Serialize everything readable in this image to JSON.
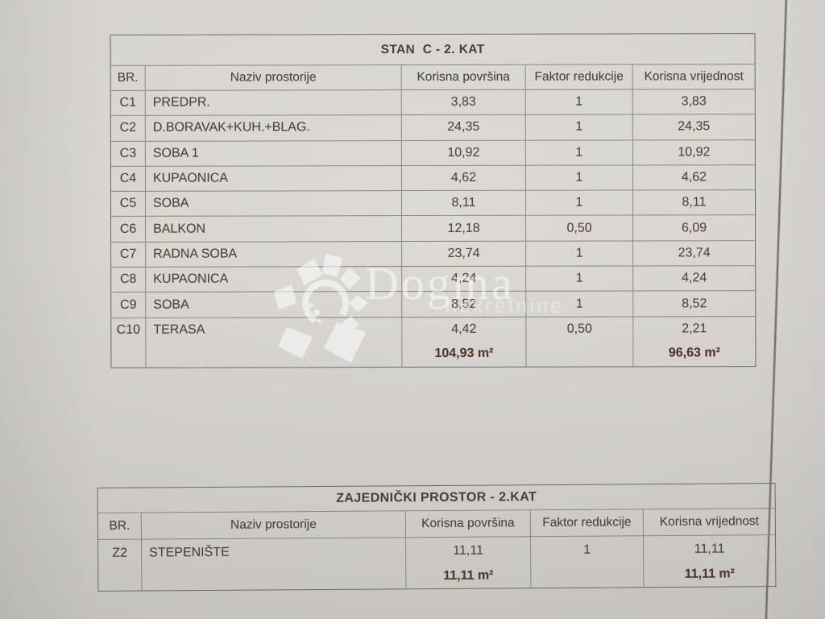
{
  "watermark": {
    "brand": "Dogma",
    "subtitle": "nekretnine"
  },
  "stan_table": {
    "title": "STAN  C - 2. KAT",
    "columns": [
      "BR.",
      "Naziv prostorije",
      "Korisna površina",
      "Faktor redukcije",
      "Korisna vrijednost"
    ],
    "rows": [
      {
        "br": "C1",
        "naziv": "PREDPR.",
        "povrsina": "3,83",
        "faktor": "1",
        "vrijednost": "3,83"
      },
      {
        "br": "C2",
        "naziv": "D.BORAVAK+KUH.+BLAG.",
        "povrsina": "24,35",
        "faktor": "1",
        "vrijednost": "24,35"
      },
      {
        "br": "C3",
        "naziv": "SOBA 1",
        "povrsina": "10,92",
        "faktor": "1",
        "vrijednost": "10,92"
      },
      {
        "br": "C4",
        "naziv": "KUPAONICA",
        "povrsina": "4,62",
        "faktor": "1",
        "vrijednost": "4,62"
      },
      {
        "br": "C5",
        "naziv": "SOBA",
        "povrsina": "8,11",
        "faktor": "1",
        "vrijednost": "8,11"
      },
      {
        "br": "C6",
        "naziv": "BALKON",
        "povrsina": "12,18",
        "faktor": "0,50",
        "vrijednost": "6,09"
      },
      {
        "br": "C7",
        "naziv": "RADNA SOBA",
        "povrsina": "23,74",
        "faktor": "1",
        "vrijednost": "23,74"
      },
      {
        "br": "C8",
        "naziv": "KUPAONICA",
        "povrsina": "4,24",
        "faktor": "1",
        "vrijednost": "4,24"
      },
      {
        "br": "C9",
        "naziv": "SOBA",
        "povrsina": "8,52",
        "faktor": "1",
        "vrijednost": "8,52"
      },
      {
        "br": "C10",
        "naziv": "TERASA",
        "povrsina": "4,42",
        "faktor": "0,50",
        "vrijednost": "2,21"
      }
    ],
    "totals": {
      "povrsina": "104,93 m²",
      "vrijednost": "96,63 m²"
    }
  },
  "zajednicki_table": {
    "title": "ZAJEDNIČKI PROSTOR - 2.KAT",
    "columns": [
      "BR.",
      "Naziv prostorije",
      "Korisna površina",
      "Faktor redukcije",
      "Korisna vrijednost"
    ],
    "rows": [
      {
        "br": "Z2",
        "naziv": "STEPENIŠTE",
        "povrsina": "11,11",
        "faktor": "1",
        "vrijednost": "11,11"
      }
    ],
    "totals": {
      "povrsina": "11,11 m²",
      "vrijednost": "11,11 m²"
    }
  }
}
